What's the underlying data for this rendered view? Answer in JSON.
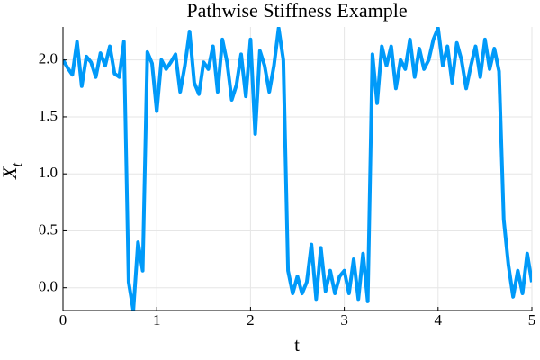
{
  "chart_data": {
    "type": "line",
    "title": "Pathwise Stiffness Example",
    "xlabel": "t",
    "ylabel_main": "X",
    "ylabel_subscript": "t",
    "color": "#009af9",
    "grid": true,
    "x": [
      0,
      0.05,
      0.1,
      0.15,
      0.2,
      0.25,
      0.3,
      0.35,
      0.4,
      0.45,
      0.5,
      0.55,
      0.6,
      0.65,
      0.7,
      0.75,
      0.8,
      0.85,
      0.9,
      0.95,
      1,
      1.05,
      1.1,
      1.15,
      1.2,
      1.25,
      1.3,
      1.35,
      1.4,
      1.45,
      1.5,
      1.55,
      1.6,
      1.65,
      1.7,
      1.75,
      1.8,
      1.85,
      1.9,
      1.95,
      2,
      2.05,
      2.1,
      2.15,
      2.2,
      2.25,
      2.3,
      2.35,
      2.4,
      2.45,
      2.5,
      2.55,
      2.6,
      2.65,
      2.7,
      2.75,
      2.8,
      2.85,
      2.9,
      2.95,
      3,
      3.05,
      3.1,
      3.15,
      3.2,
      3.25,
      3.3,
      3.35,
      3.4,
      3.45,
      3.5,
      3.55,
      3.6,
      3.65,
      3.7,
      3.75,
      3.8,
      3.85,
      3.9,
      3.95,
      4,
      4.05,
      4.1,
      4.15,
      4.2,
      4.25,
      4.3,
      4.35,
      4.4,
      4.45,
      4.5,
      4.55,
      4.6,
      4.65,
      4.7,
      4.75,
      4.8,
      4.85,
      4.9,
      4.95,
      5
    ],
    "values": [
      2.0,
      1.93,
      1.87,
      2.16,
      1.77,
      2.03,
      1.98,
      1.85,
      2.06,
      1.95,
      2.12,
      1.88,
      1.85,
      2.16,
      0.05,
      -0.2,
      0.4,
      0.15,
      2.07,
      1.97,
      1.55,
      2.0,
      1.92,
      1.98,
      2.05,
      1.72,
      1.95,
      2.25,
      1.8,
      1.7,
      1.98,
      1.92,
      2.12,
      1.72,
      2.18,
      1.98,
      1.65,
      1.78,
      2.05,
      1.68,
      2.18,
      1.35,
      2.08,
      1.95,
      1.72,
      1.95,
      2.28,
      2.0,
      0.15,
      -0.05,
      0.1,
      -0.05,
      0.05,
      0.38,
      -0.1,
      0.35,
      -0.03,
      0.15,
      -0.05,
      0.1,
      0.15,
      -0.05,
      0.25,
      -0.1,
      0.3,
      -0.12,
      2.05,
      1.62,
      2.12,
      1.95,
      2.12,
      1.75,
      2.0,
      1.92,
      2.18,
      1.85,
      2.1,
      1.92,
      2.0,
      2.18,
      2.28,
      1.95,
      2.12,
      1.8,
      2.15,
      2.0,
      1.75,
      1.95,
      2.12,
      1.85,
      2.18,
      1.92,
      2.1,
      1.9,
      0.6,
      0.2,
      -0.08,
      0.15,
      -0.05,
      0.3,
      0.05
    ],
    "xlim": [
      0,
      5
    ],
    "xticks": [
      0,
      1,
      2,
      3,
      4,
      5
    ],
    "ylim": [
      -0.2,
      2.29
    ],
    "yticks": [
      {
        "value": 0,
        "label": "0.0"
      },
      {
        "value": 0.5,
        "label": "0.5"
      },
      {
        "value": 1,
        "label": "1.0"
      },
      {
        "value": 1.5,
        "label": "1.5"
      },
      {
        "value": 2,
        "label": "2.0"
      }
    ]
  }
}
